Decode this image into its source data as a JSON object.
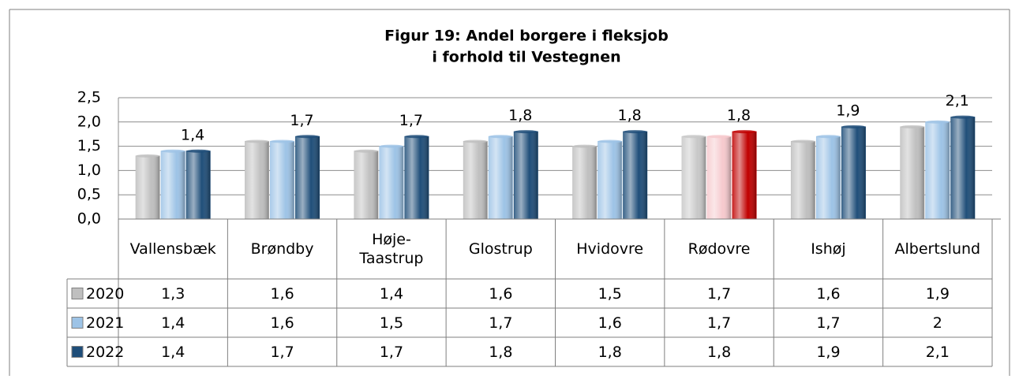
{
  "chart_data": {
    "type": "bar",
    "title": [
      "Figur 19: Andel borgere i fleksjob",
      "i forhold til Vestegnen"
    ],
    "categories": [
      "Vallensbæk",
      "Brøndby",
      "Høje-Taastrup",
      "Glostrup",
      "Hvidovre",
      "Rødovre",
      "Ishøj",
      "Albertslund"
    ],
    "series": [
      {
        "name": "2020",
        "color": "#bfbfbf",
        "values": [
          1.3,
          1.6,
          1.4,
          1.6,
          1.5,
          1.7,
          1.6,
          1.9
        ],
        "value_labels": [
          "1,3",
          "1,6",
          "1,4",
          "1,6",
          "1,5",
          "1,7",
          "1,6",
          "1,9"
        ]
      },
      {
        "name": "2021",
        "color": "#9dc3e6",
        "values": [
          1.4,
          1.6,
          1.5,
          1.7,
          1.6,
          1.7,
          1.7,
          2
        ],
        "value_labels": [
          "1,4",
          "1,6",
          "1,5",
          "1,7",
          "1,6",
          "1,7",
          "1,7",
          "2"
        ]
      },
      {
        "name": "2022",
        "color": "#1f4e79",
        "values": [
          1.4,
          1.7,
          1.7,
          1.8,
          1.8,
          1.8,
          1.9,
          2.1
        ],
        "value_labels": [
          "1,4",
          "1,7",
          "1,7",
          "1,8",
          "1,8",
          "1,8",
          "1,9",
          "2,1"
        ],
        "data_labels": true
      }
    ],
    "highlight": {
      "category": "Rødovre",
      "colors": [
        "#c8c8c8",
        "#f6c9cd",
        "#c00000"
      ]
    },
    "ylim": [
      0,
      2.5
    ],
    "yticks": [
      {
        "value": 0,
        "label": "0,0"
      },
      {
        "value": 0.5,
        "label": "0,5"
      },
      {
        "value": 1,
        "label": "1,0"
      },
      {
        "value": 1.5,
        "label": "1,5"
      },
      {
        "value": 2,
        "label": "2,0"
      },
      {
        "value": 2.5,
        "label": "2,5"
      }
    ],
    "grid": true
  }
}
